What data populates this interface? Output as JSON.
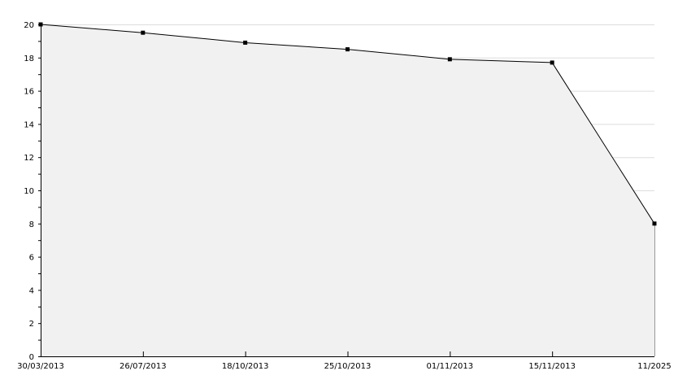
{
  "chart_data": {
    "type": "area",
    "categories": [
      "30/03/2013",
      "26/07/2013",
      "18/10/2013",
      "25/10/2013",
      "01/11/2013",
      "15/11/2013",
      "11/2025"
    ],
    "series": [
      {
        "values": [
          20,
          19.5,
          18.9,
          18.5,
          17.9,
          17.7,
          8
        ]
      }
    ],
    "title": "",
    "xlabel": "",
    "ylabel": "",
    "ylim": [
      0,
      20
    ],
    "yticks": [
      "0",
      "2",
      "4",
      "6",
      "8",
      "10",
      "12",
      "14",
      "16",
      "18",
      "20"
    ],
    "grid": true,
    "legend": "none",
    "colors": {
      "fill": "#f1f1f1",
      "line": "#000000",
      "grid": "#dddddd",
      "marker": "#000000"
    }
  }
}
